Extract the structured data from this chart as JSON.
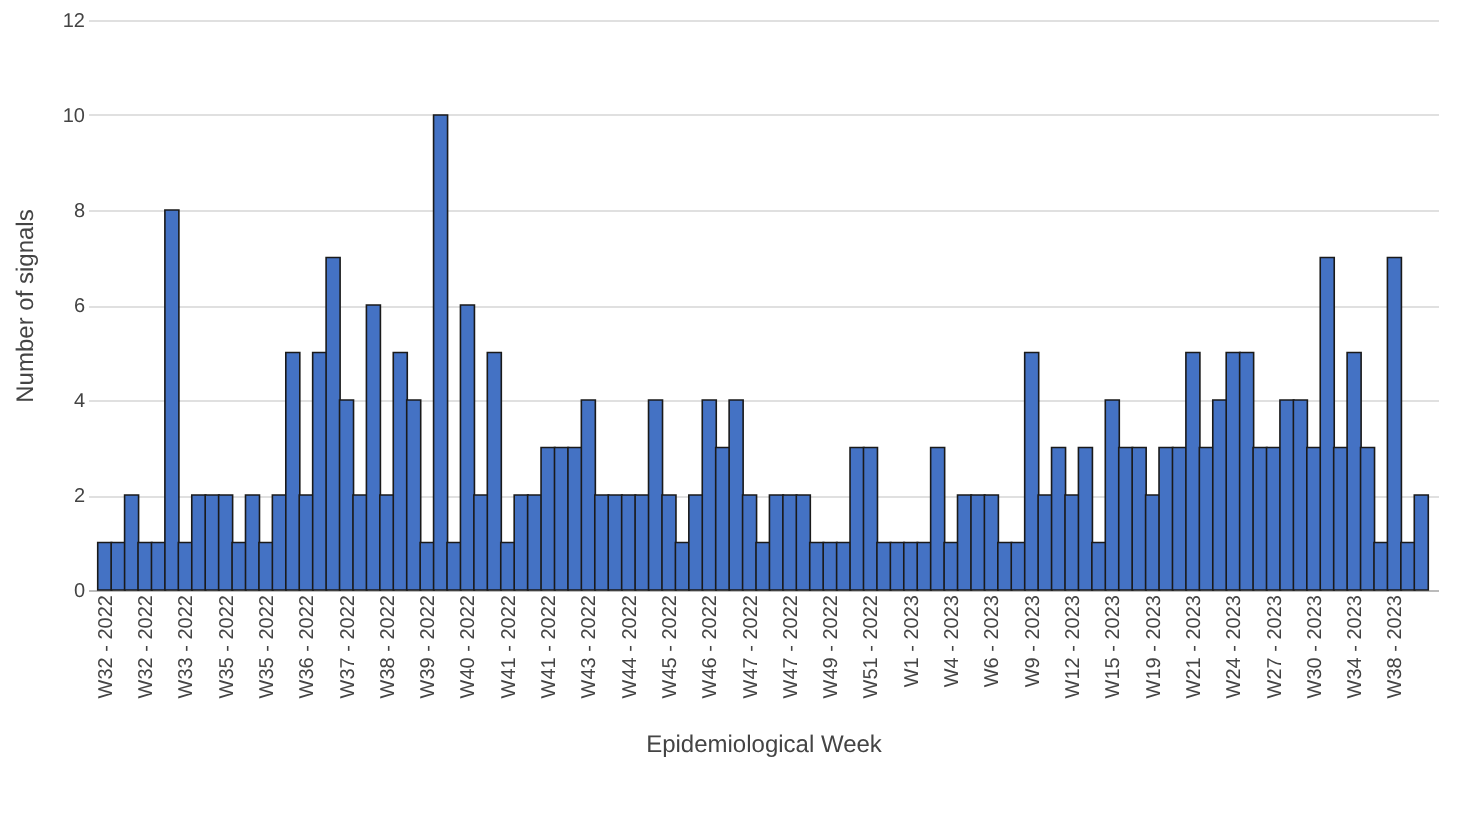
{
  "chart_data": {
    "type": "bar",
    "xlabel": "Epidemiological Week",
    "ylabel": "Number of signals",
    "categories": [
      "W32 - 2022",
      null,
      null,
      "W32 - 2022",
      null,
      null,
      "W33 - 2022",
      null,
      null,
      "W35 - 2022",
      null,
      null,
      "W35 - 2022",
      null,
      null,
      "W36 - 2022",
      null,
      null,
      "W37 - 2022",
      null,
      null,
      "W38 - 2022",
      null,
      null,
      "W39 - 2022",
      null,
      null,
      "W40 - 2022",
      null,
      null,
      "W41 - 2022",
      null,
      null,
      "W41 - 2022",
      null,
      null,
      "W43 - 2022",
      null,
      null,
      "W44 - 2022",
      null,
      null,
      "W45 - 2022",
      null,
      null,
      "W46 - 2022",
      null,
      null,
      "W47 - 2022",
      null,
      null,
      "W47 - 2022",
      null,
      null,
      "W49 - 2022",
      null,
      null,
      "W51 - 2022",
      null,
      null,
      "W1 - 2023",
      null,
      null,
      "W4 - 2023",
      null,
      null,
      "W6 - 2023",
      null,
      null,
      "W9 - 2023",
      null,
      null,
      "W12 - 2023",
      null,
      null,
      "W15 - 2023",
      null,
      null,
      "W19 - 2023",
      null,
      null,
      "W21 - 2023",
      null,
      null,
      "W24 - 2023",
      null,
      null,
      "W27 - 2023",
      null,
      null,
      "W30 - 2023",
      null,
      null,
      "W34 - 2023",
      null,
      null,
      "W38 - 2023",
      null,
      null
    ],
    "values": [
      1,
      1,
      2,
      1,
      1,
      8,
      1,
      2,
      2,
      2,
      1,
      2,
      1,
      2,
      5,
      2,
      5,
      7,
      4,
      2,
      6,
      2,
      5,
      4,
      1,
      10,
      1,
      6,
      2,
      5,
      1,
      2,
      2,
      3,
      3,
      3,
      4,
      2,
      2,
      2,
      2,
      4,
      2,
      1,
      2,
      4,
      3,
      4,
      2,
      1,
      2,
      2,
      2,
      1,
      1,
      1,
      3,
      3,
      1,
      1,
      1,
      1,
      3,
      1,
      2,
      2,
      2,
      1,
      1,
      5,
      2,
      3,
      2,
      3,
      1,
      4,
      3,
      3,
      2,
      3,
      3,
      5,
      3,
      4,
      5,
      5,
      3,
      3,
      4,
      4,
      3,
      7,
      3,
      5,
      3,
      1,
      7,
      1,
      2
    ],
    "color": "#4472c4",
    "ylim": [
      0,
      12
    ],
    "yticks": [
      0,
      2,
      4,
      6,
      8,
      10,
      12
    ],
    "grid": "y"
  }
}
